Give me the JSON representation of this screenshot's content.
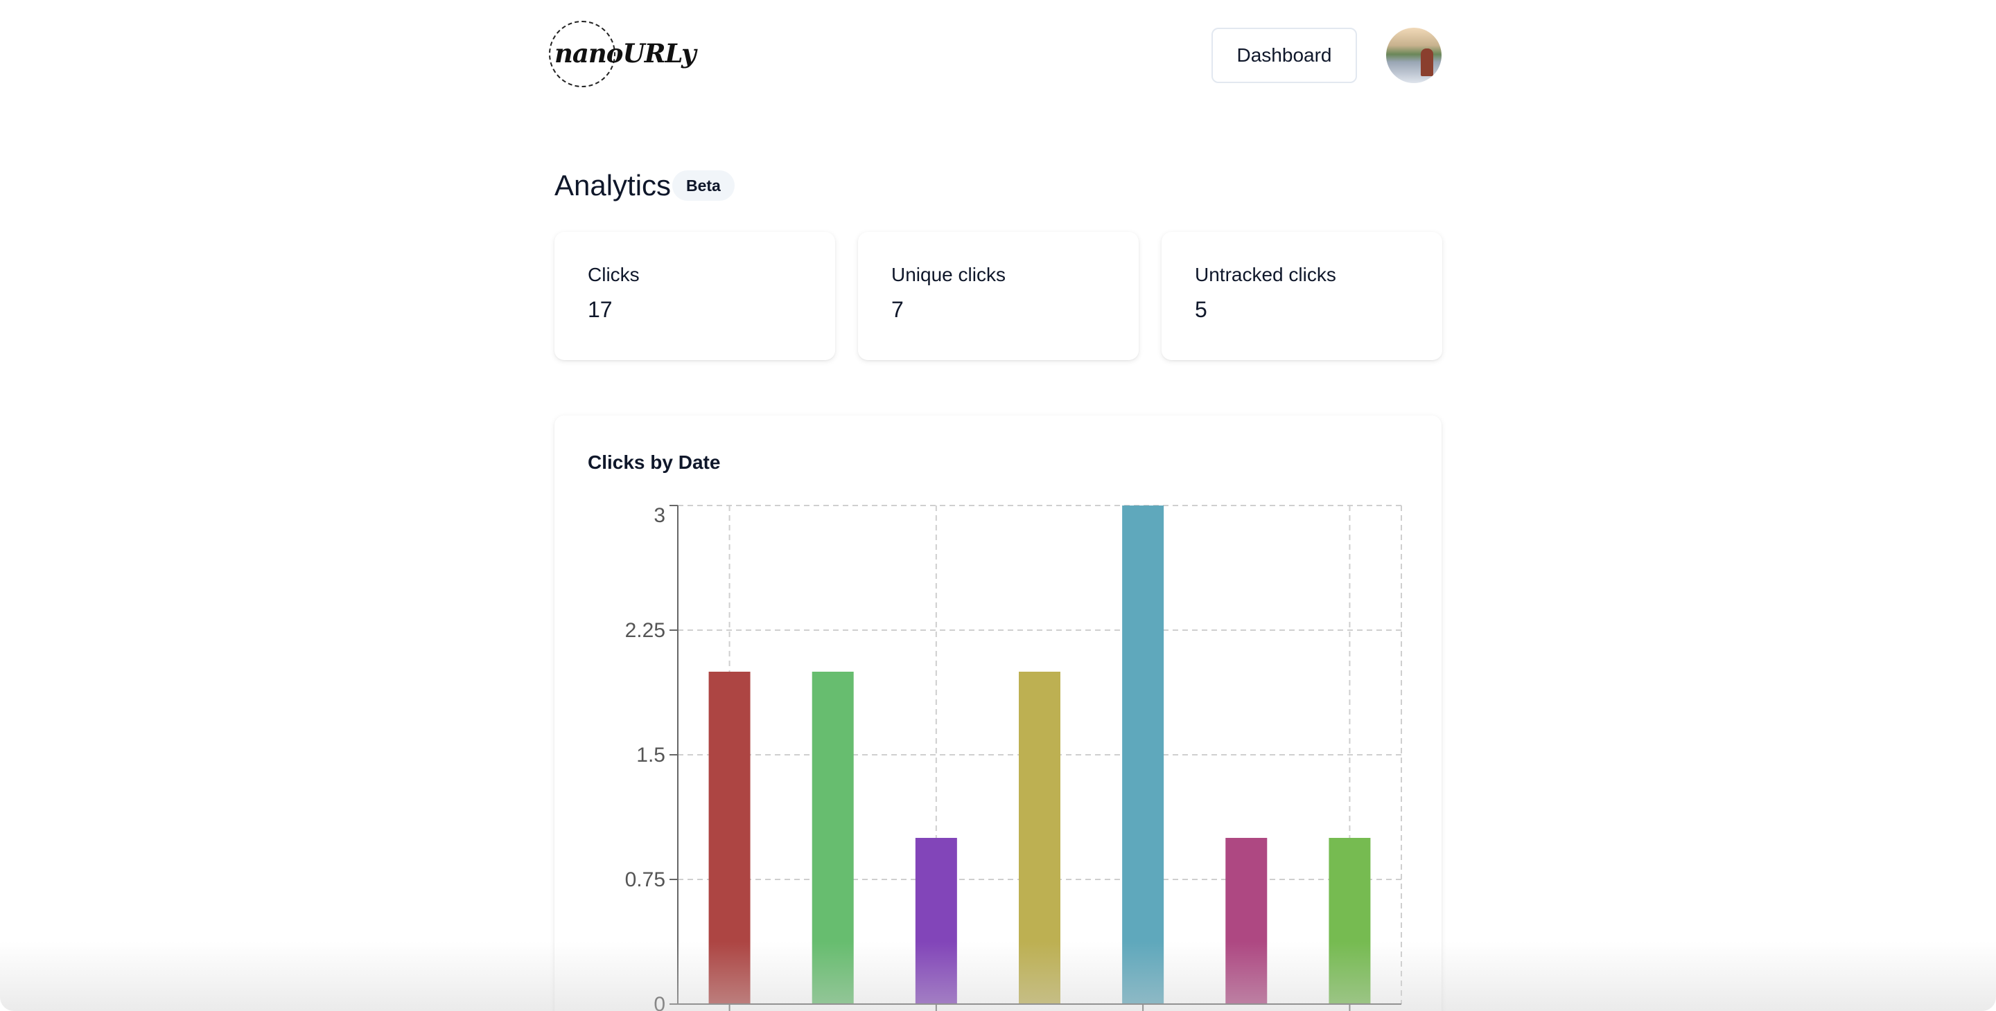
{
  "header": {
    "logo_text": "nanoURLy",
    "dashboard_label": "Dashboard",
    "avatar_icon": "user-avatar"
  },
  "page": {
    "title": "Analytics",
    "badge": "Beta"
  },
  "stats": [
    {
      "label": "Clicks",
      "value": "17"
    },
    {
      "label": "Unique clicks",
      "value": "7"
    },
    {
      "label": "Untracked clicks",
      "value": "5"
    }
  ],
  "chart_data": {
    "type": "bar",
    "title": "Clicks by Date",
    "categories": [
      "",
      "",
      "",
      "",
      "",
      "",
      ""
    ],
    "values": [
      2,
      2,
      1,
      2,
      3,
      1,
      1
    ],
    "colors": [
      "#ad4543",
      "#67bd6f",
      "#8245b9",
      "#bdb052",
      "#5fa8bc",
      "#ae4882",
      "#76bb51"
    ],
    "ylim": [
      0,
      3
    ],
    "yticks": [
      "0",
      "0.75",
      "1.5",
      "2.25",
      "3"
    ],
    "grid": true,
    "xlabel": "",
    "ylabel": ""
  }
}
